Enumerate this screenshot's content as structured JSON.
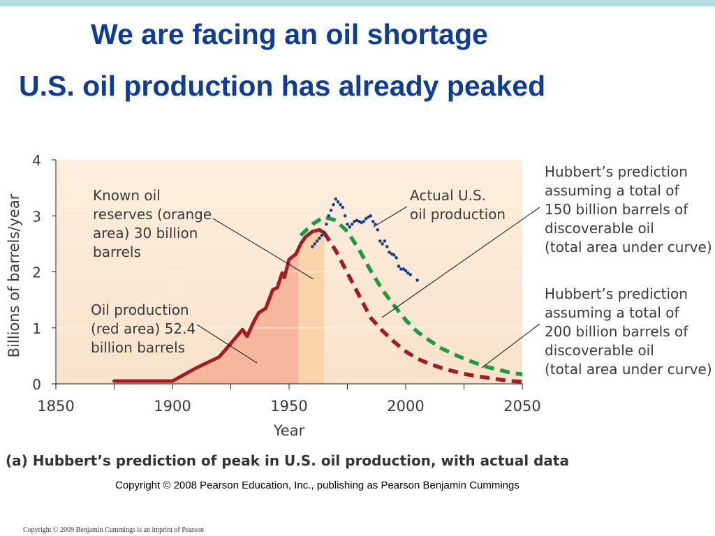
{
  "slide": {
    "title": "We are facing an oil shortage",
    "subtitle": "U.S. oil production has already peaked",
    "copyright": "Copyright © 2008 Pearson Education, Inc., publishing as Pearson Benjamin Cummings",
    "footer": "Copyright © 2009 Benjamin Cummings is an imprint of Pearson"
  },
  "colors": {
    "title": "#0f3c96",
    "band": "#b3dfe3",
    "plot_bg": "#fbe9d6",
    "red_curve": "#a41c22",
    "red_area": "#f6b79f",
    "orange_area": "#fbd3ab",
    "green_curve": "#1f9a3e",
    "actual_points": "#1c3d8a"
  },
  "chart_data": {
    "type": "line",
    "caption": "(a) Hubbert’s prediction of peak in U.S. oil production, with actual data",
    "xlabel": "Year",
    "ylabel": "Billions of barrels/year",
    "xlim": [
      1850,
      2050
    ],
    "ylim": [
      0,
      4
    ],
    "xticks": [
      1850,
      1900,
      1950,
      2000,
      2050
    ],
    "yticks": [
      0,
      1,
      2,
      3,
      4
    ],
    "grid": true,
    "series": [
      {
        "style": "solid",
        "x": [
          1875,
          1900,
          1910,
          1920,
          1925,
          1930,
          1932,
          1935,
          1937,
          1940,
          1943,
          1945,
          1947,
          1948,
          1950,
          1953,
          1955,
          1957,
          1960,
          1963,
          1965
        ],
        "y": [
          0.05,
          0.05,
          0.28,
          0.48,
          0.72,
          0.97,
          0.85,
          1.12,
          1.27,
          1.35,
          1.68,
          1.72,
          1.98,
          1.9,
          2.22,
          2.32,
          2.5,
          2.62,
          2.72,
          2.75,
          2.7
        ]
      },
      {
        "style": "dashed",
        "x": [
          1965,
          1970,
          1975,
          1980,
          1985,
          1990,
          1995,
          2000,
          2005,
          2010,
          2015,
          2020,
          2025,
          2030,
          2035,
          2040,
          2045,
          2050
        ],
        "y": [
          2.7,
          2.38,
          1.98,
          1.58,
          1.18,
          0.95,
          0.75,
          0.58,
          0.45,
          0.36,
          0.29,
          0.23,
          0.18,
          0.14,
          0.11,
          0.08,
          0.05,
          0.04
        ]
      },
      {
        "style": "dashed",
        "x": [
          1955,
          1960,
          1965,
          1970,
          1975,
          1980,
          1985,
          1990,
          1995,
          2000,
          2005,
          2010,
          2015,
          2020,
          2025,
          2030,
          2035,
          2040,
          2045,
          2050
        ],
        "y": [
          2.65,
          2.85,
          2.98,
          2.92,
          2.72,
          2.4,
          2.02,
          1.68,
          1.4,
          1.14,
          0.93,
          0.78,
          0.64,
          0.54,
          0.45,
          0.37,
          0.3,
          0.25,
          0.2,
          0.17
        ]
      },
      {
        "style": "dots",
        "x": [
          1960,
          1961,
          1962,
          1963,
          1964,
          1965,
          1966,
          1967,
          1968,
          1969,
          1970,
          1971,
          1972,
          1973,
          1974,
          1975,
          1976,
          1977,
          1978,
          1979,
          1980,
          1981,
          1982,
          1983,
          1984,
          1985,
          1986,
          1987,
          1988,
          1989,
          1990,
          1991,
          1992,
          1993,
          1994,
          1995,
          1996,
          1997,
          1998,
          1999,
          2000,
          2001,
          2002,
          2005
        ],
        "y": [
          2.45,
          2.5,
          2.55,
          2.6,
          2.65,
          2.7,
          2.85,
          3.0,
          3.1,
          3.2,
          3.3,
          3.25,
          3.2,
          3.15,
          3.0,
          2.85,
          2.8,
          2.85,
          2.9,
          2.92,
          2.9,
          2.88,
          2.9,
          2.95,
          2.98,
          3.0,
          2.9,
          2.85,
          2.75,
          2.55,
          2.5,
          2.55,
          2.45,
          2.35,
          2.32,
          2.3,
          2.25,
          2.1,
          2.05,
          2.05,
          2.02,
          1.98,
          1.95,
          1.85
        ]
      }
    ],
    "shaded_areas": [
      {
        "label": "Oil production (red area) 52.4 billion barrels",
        "x_range": [
          1875,
          1954
        ]
      },
      {
        "label": "Known oil reserves (orange area) 30 billion barrels",
        "x_range": [
          1954,
          1965
        ]
      }
    ],
    "annotations": {
      "reserves": [
        "Known oil",
        "reserves (orange",
        "area) 30 billion",
        "barrels"
      ],
      "production": [
        "Oil production",
        "(red area) 52.4",
        "billion barrels"
      ],
      "actual": [
        "Actual U.S.",
        "oil production"
      ],
      "pred150": [
        "Hubbert’s prediction",
        "assuming a total of",
        "150 billion barrels of",
        "discoverable oil",
        "(total area under curve)"
      ],
      "pred200": [
        "Hubbert’s prediction",
        "assuming a total of",
        "200 billion barrels of",
        "discoverable oil",
        "(total area under curve)"
      ]
    }
  }
}
